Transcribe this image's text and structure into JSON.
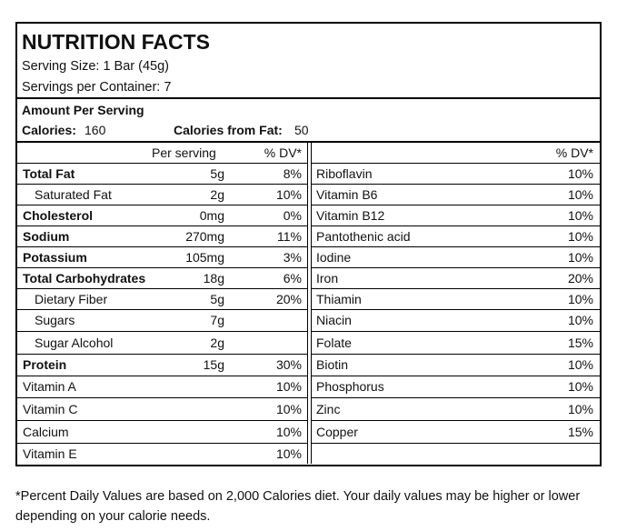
{
  "header": {
    "title": "NUTRITION FACTS",
    "serving_size": "Serving Size: 1 Bar (45g)",
    "servings_per_container": "Servings per Container: 7"
  },
  "amount": {
    "heading": "Amount Per Serving",
    "calories_label": "Calories:",
    "calories": "160",
    "calories_from_fat_label": "Calories from Fat:",
    "calories_from_fat": "50"
  },
  "table": {
    "left_columns": [
      "Per serving",
      "% DV*"
    ],
    "left_rows": [
      {
        "name": "Total Fat",
        "amount": "5g",
        "dv": "8%",
        "bold": true
      },
      {
        "name": "Saturated Fat",
        "amount": "2g",
        "dv": "10%",
        "indent": true
      },
      {
        "name": "Cholesterol",
        "amount": "0mg",
        "dv": "0%",
        "bold": true
      },
      {
        "name": "Sodium",
        "amount": "270mg",
        "dv": "11%",
        "bold": true
      },
      {
        "name": "Potassium",
        "amount": "105mg",
        "dv": "3%",
        "bold": true
      },
      {
        "name": "Total Carbohydrates",
        "amount": "18g",
        "dv": "6%",
        "bold": true
      },
      {
        "name": "Dietary Fiber",
        "amount": "5g",
        "dv": "20%",
        "indent": true
      },
      {
        "name": "Sugars",
        "amount": "7g",
        "indent": true
      },
      {
        "name": "Sugar Alcohol",
        "amount": "2g",
        "indent": true
      },
      {
        "name": "Protein",
        "amount": "15g",
        "dv": "30%",
        "bold": true
      }
    ],
    "left_vitamins": [
      {
        "name": "Vitamin A",
        "dv": "10%"
      },
      {
        "name": "Vitamin C",
        "dv": "10%"
      },
      {
        "name": "Calcium",
        "dv": "10%"
      },
      {
        "name": "Vitamin E",
        "dv": "10%"
      }
    ],
    "right_column": "% DV*",
    "right_rows": [
      {
        "name": "Riboflavin",
        "dv": "10%"
      },
      {
        "name": "Vitamin B6",
        "dv": "10%"
      },
      {
        "name": "Vitamin B12",
        "dv": "10%"
      },
      {
        "name": "Pantothenic acid",
        "dv": "10%"
      },
      {
        "name": "Iodine",
        "dv": "10%"
      },
      {
        "name": "Iron",
        "dv": "20%"
      },
      {
        "name": "Thiamin",
        "dv": "10%"
      },
      {
        "name": "Niacin",
        "dv": "10%"
      },
      {
        "name": "Folate",
        "dv": "15%"
      },
      {
        "name": "Biotin",
        "dv": "10%"
      },
      {
        "name": "Phosphorus",
        "dv": "10%"
      },
      {
        "name": "Zinc",
        "dv": "10%"
      },
      {
        "name": "Copper",
        "dv": "15%"
      }
    ]
  },
  "footnote": "*Percent Daily Values are based on 2,000 Calories diet. Your daily values may be higher or lower depending on your calorie needs."
}
